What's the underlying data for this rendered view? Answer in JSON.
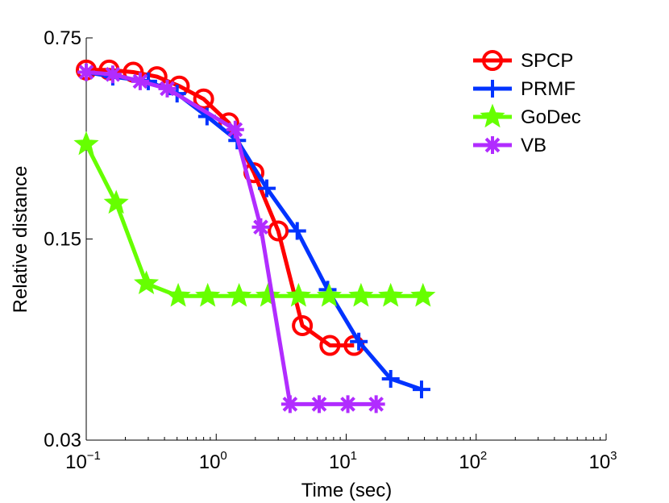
{
  "chart_data": {
    "type": "line",
    "title": "",
    "xlabel": "Time (sec)",
    "ylabel": "Relative distance",
    "x_scale": "log",
    "y_scale": "log",
    "xlim": [
      0.1,
      1000
    ],
    "ylim": [
      0.03,
      0.75
    ],
    "x_ticks": [
      {
        "value": 0.1,
        "base": "10",
        "exp": "−1"
      },
      {
        "value": 1,
        "base": "10",
        "exp": "0"
      },
      {
        "value": 10,
        "base": "10",
        "exp": "1"
      },
      {
        "value": 100,
        "base": "10",
        "exp": "2"
      },
      {
        "value": 1000,
        "base": "10",
        "exp": "3"
      }
    ],
    "y_ticks": [
      {
        "value": 0.75,
        "label": "0.75"
      },
      {
        "value": 0.15,
        "label": "0.15"
      },
      {
        "value": 0.03,
        "label": "0.03"
      }
    ],
    "grid": false,
    "legend_position": "top-right",
    "series": [
      {
        "name": "SPCP",
        "color": "#ff0000",
        "marker": "circle",
        "x": [
          0.1,
          0.15,
          0.23,
          0.35,
          0.52,
          0.8,
          1.25,
          1.95,
          3.0,
          4.6,
          7.5,
          11.5
        ],
        "y": [
          0.58,
          0.58,
          0.57,
          0.55,
          0.51,
          0.46,
          0.38,
          0.255,
          0.16,
          0.075,
          0.064,
          0.064
        ]
      },
      {
        "name": "PRMF",
        "color": "#0033ff",
        "marker": "plus",
        "x": [
          0.1,
          0.16,
          0.3,
          0.5,
          0.85,
          1.45,
          2.45,
          4.2,
          7.2,
          12.5,
          22,
          38
        ],
        "y": [
          0.57,
          0.55,
          0.53,
          0.48,
          0.4,
          0.33,
          0.225,
          0.16,
          0.1,
          0.066,
          0.049,
          0.045
        ]
      },
      {
        "name": "GoDec",
        "color": "#66ff00",
        "marker": "star",
        "x": [
          0.1,
          0.17,
          0.29,
          0.51,
          0.86,
          1.5,
          2.5,
          4.3,
          7.4,
          13,
          22,
          39
        ],
        "y": [
          0.32,
          0.2,
          0.105,
          0.095,
          0.095,
          0.095,
          0.095,
          0.095,
          0.095,
          0.095,
          0.095,
          0.095
        ]
      },
      {
        "name": "VB",
        "color": "#b12cff",
        "marker": "asterisk",
        "x": [
          0.1,
          0.16,
          0.26,
          0.42,
          1.4,
          2.2,
          3.7,
          6.2,
          10.3,
          17
        ],
        "y": [
          0.57,
          0.56,
          0.53,
          0.5,
          0.36,
          0.165,
          0.04,
          0.04,
          0.04,
          0.04
        ]
      }
    ]
  }
}
